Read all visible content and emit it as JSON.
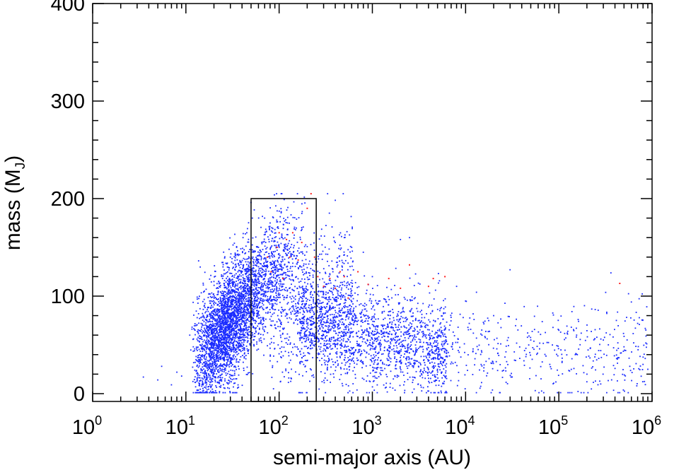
{
  "chart_data": {
    "type": "scatter",
    "title": "",
    "xlabel": "semi-major axis (AU)",
    "ylabel": {
      "prefix": "mass (M",
      "subscript": "J",
      "suffix": ")"
    },
    "x_scale": "log",
    "xlim": [
      1,
      1000000
    ],
    "ylim": [
      -8,
      400
    ],
    "x_ticks": [
      {
        "base": "10",
        "exp": "0",
        "value": 1
      },
      {
        "base": "10",
        "exp": "1",
        "value": 10
      },
      {
        "base": "10",
        "exp": "2",
        "value": 100
      },
      {
        "base": "10",
        "exp": "3",
        "value": 1000
      },
      {
        "base": "10",
        "exp": "4",
        "value": 10000
      },
      {
        "base": "10",
        "exp": "5",
        "value": 100000
      },
      {
        "base": "10",
        "exp": "6",
        "value": 1000000
      }
    ],
    "y_ticks": [
      {
        "label": "0",
        "value": 0
      },
      {
        "label": "100",
        "value": 100
      },
      {
        "label": "200",
        "value": 200
      },
      {
        "label": "300",
        "value": 300
      },
      {
        "label": "400",
        "value": 400
      }
    ],
    "grid": false,
    "selection_box": {
      "x": [
        50,
        250
      ],
      "y": [
        -8,
        200
      ],
      "color": "#000000"
    },
    "series": [
      {
        "color": "#1a2bff",
        "approx_count": 6500,
        "points": [
          [
            3.5,
            17
          ],
          [
            5.5,
            28
          ],
          [
            5,
            14
          ],
          [
            7,
            9
          ],
          [
            8,
            22
          ],
          [
            9,
            18
          ],
          [
            11,
            60
          ],
          [
            12,
            48
          ],
          [
            14,
            35
          ],
          [
            18,
            95
          ],
          [
            20,
            115
          ],
          [
            25,
            130
          ],
          [
            28,
            120
          ],
          [
            30,
            140
          ],
          [
            35,
            150
          ],
          [
            40,
            125
          ],
          [
            45,
            165
          ],
          [
            50,
            110
          ],
          [
            60,
            150
          ],
          [
            70,
            180
          ],
          [
            80,
            175
          ],
          [
            90,
            160
          ],
          [
            100,
            150
          ],
          [
            120,
            130
          ],
          [
            150,
            100
          ],
          [
            180,
            95
          ],
          [
            200,
            85
          ],
          [
            220,
            75
          ],
          [
            300,
            60
          ],
          [
            400,
            155
          ],
          [
            500,
            160
          ],
          [
            600,
            150
          ],
          [
            800,
            145
          ],
          [
            1000,
            120
          ],
          [
            2000,
            158
          ],
          [
            2500,
            160
          ],
          [
            3000,
            45
          ],
          [
            5000,
            25
          ],
          [
            8000,
            110
          ],
          [
            10000,
            95
          ],
          [
            15000,
            60
          ],
          [
            20000,
            80
          ],
          [
            30000,
            127
          ],
          [
            50000,
            55
          ],
          [
            80000,
            30
          ],
          [
            100000,
            65
          ],
          [
            150000,
            40
          ],
          [
            200000,
            20
          ],
          [
            300000,
            55
          ],
          [
            500000,
            48
          ],
          [
            700000,
            72
          ],
          [
            800000,
            30
          ],
          [
            900000,
            25
          ]
        ]
      },
      {
        "color": "#ff2020",
        "approx_count": 60,
        "points": [
          [
            75,
            140
          ],
          [
            82,
            125
          ],
          [
            95,
            150
          ],
          [
            100,
            165
          ],
          [
            110,
            118
          ],
          [
            120,
            158
          ],
          [
            130,
            140
          ],
          [
            140,
            165
          ],
          [
            160,
            137
          ],
          [
            175,
            155
          ],
          [
            200,
            190
          ],
          [
            220,
            205
          ],
          [
            240,
            140
          ],
          [
            260,
            120
          ],
          [
            300,
            110
          ],
          [
            350,
            118
          ],
          [
            400,
            108
          ],
          [
            450,
            125
          ],
          [
            500,
            120
          ],
          [
            550,
            98
          ],
          [
            700,
            125
          ],
          [
            900,
            112
          ],
          [
            1500,
            118
          ],
          [
            2000,
            108
          ],
          [
            2500,
            132
          ],
          [
            4000,
            110
          ],
          [
            4500,
            118
          ],
          [
            6000,
            120
          ],
          [
            450000,
            113
          ]
        ]
      }
    ]
  }
}
